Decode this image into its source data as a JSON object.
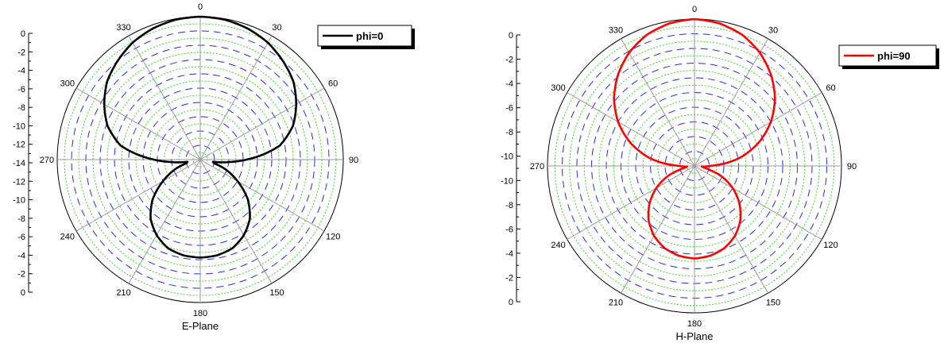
{
  "chart_data": [
    {
      "type": "polar-line",
      "title": "E-Plane",
      "angular_unit": "degrees",
      "angle_ticks": [
        "0",
        "30",
        "60",
        "90",
        "120",
        "150",
        "180",
        "210",
        "240",
        "270",
        "300",
        "330"
      ],
      "radial_range": [
        -20,
        0
      ],
      "radial_tick_labels_upper": [
        "0",
        "-2",
        "-4",
        "-6",
        "-8",
        "-10",
        "-12"
      ],
      "radial_tick_labels_lower": [
        "-14",
        "-12",
        "-10",
        "-8",
        "-6",
        "-4",
        "-2",
        "0"
      ],
      "grid": true,
      "legend_position": "top-right",
      "series": [
        {
          "name": "phi=0",
          "color": "#000000",
          "points_deg_db": [
            [
              0,
              0
            ],
            [
              10,
              -0.13
            ],
            [
              20,
              -0.5
            ],
            [
              30,
              -1.1
            ],
            [
              40,
              -2.0
            ],
            [
              50,
              -3.0
            ],
            [
              60,
              -4.5
            ],
            [
              70,
              -6.2
            ],
            [
              80,
              -8.7
            ],
            [
              85,
              -11
            ],
            [
              90,
              -13.5
            ],
            [
              95,
              -16
            ],
            [
              100,
              -18.2
            ],
            [
              105,
              -18
            ],
            [
              110,
              -16.5
            ],
            [
              120,
              -14.0
            ],
            [
              130,
              -11.3
            ],
            [
              140,
              -9.2
            ],
            [
              150,
              -7.8
            ],
            [
              160,
              -6.8
            ],
            [
              170,
              -6.4
            ],
            [
              180,
              -6.3
            ],
            [
              190,
              -6.4
            ],
            [
              200,
              -6.8
            ],
            [
              210,
              -7.8
            ],
            [
              220,
              -9.2
            ],
            [
              230,
              -11.3
            ],
            [
              240,
              -14.0
            ],
            [
              250,
              -16.5
            ],
            [
              255,
              -18
            ],
            [
              260,
              -18.2
            ],
            [
              265,
              -16
            ],
            [
              270,
              -13.5
            ],
            [
              275,
              -11
            ],
            [
              280,
              -8.7
            ],
            [
              290,
              -6.2
            ],
            [
              300,
              -4.5
            ],
            [
              310,
              -3.0
            ],
            [
              320,
              -2.0
            ],
            [
              330,
              -1.1
            ],
            [
              340,
              -0.5
            ],
            [
              350,
              -0.13
            ],
            [
              360,
              0
            ]
          ]
        }
      ]
    },
    {
      "type": "polar-line",
      "title": "H-Plane",
      "angular_unit": "degrees",
      "angle_ticks": [
        "0",
        "30",
        "60",
        "90",
        "120",
        "150",
        "180",
        "210",
        "240",
        "270",
        "300",
        "330"
      ],
      "radial_range": [
        -20,
        0
      ],
      "radial_tick_labels_upper": [
        "0",
        "-2",
        "-4",
        "-6",
        "-8",
        "-10"
      ],
      "radial_tick_labels_lower": [
        "-10",
        "-8",
        "-6",
        "-4",
        "-2",
        "0"
      ],
      "grid": true,
      "legend_position": "top-right",
      "series": [
        {
          "name": "phi=90",
          "color": "#ff0000",
          "points_deg_db": [
            [
              0,
              0
            ],
            [
              10,
              -0.3
            ],
            [
              20,
              -1.0
            ],
            [
              30,
              -2.2
            ],
            [
              40,
              -3.8
            ],
            [
              50,
              -5.7
            ],
            [
              60,
              -8.0
            ],
            [
              70,
              -10.7
            ],
            [
              80,
              -13.8
            ],
            [
              85,
              -15.8
            ],
            [
              90,
              -18.0
            ],
            [
              95,
              -19.0
            ],
            [
              100,
              -18.7
            ],
            [
              105,
              -17.8
            ],
            [
              110,
              -16.3
            ],
            [
              120,
              -14.0
            ],
            [
              130,
              -12.0
            ],
            [
              140,
              -10.3
            ],
            [
              150,
              -9.0
            ],
            [
              160,
              -8.1
            ],
            [
              170,
              -7.6
            ],
            [
              180,
              -7.4
            ],
            [
              190,
              -7.6
            ],
            [
              200,
              -8.1
            ],
            [
              210,
              -9.0
            ],
            [
              220,
              -10.3
            ],
            [
              230,
              -12.0
            ],
            [
              240,
              -14.0
            ],
            [
              250,
              -16.3
            ],
            [
              255,
              -17.8
            ],
            [
              260,
              -18.7
            ],
            [
              265,
              -19.0
            ],
            [
              270,
              -18.0
            ],
            [
              275,
              -15.8
            ],
            [
              280,
              -13.8
            ],
            [
              290,
              -10.7
            ],
            [
              300,
              -8.0
            ],
            [
              310,
              -5.7
            ],
            [
              320,
              -3.8
            ],
            [
              330,
              -2.2
            ],
            [
              340,
              -1.0
            ],
            [
              350,
              -0.3
            ],
            [
              360,
              0
            ]
          ]
        }
      ]
    }
  ]
}
